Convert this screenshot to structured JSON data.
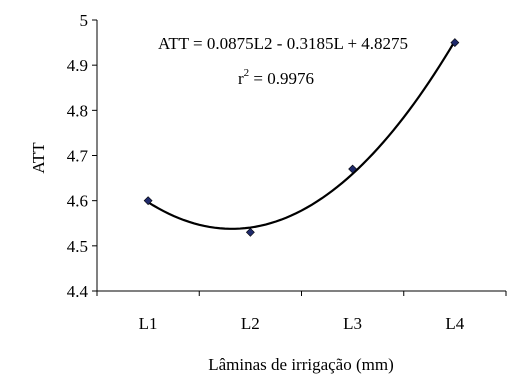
{
  "chart_data": {
    "type": "scatter",
    "categories": [
      "L1",
      "L2",
      "L3",
      "L4"
    ],
    "x": [
      1,
      2,
      3,
      4
    ],
    "series": [
      {
        "values": [
          4.6,
          4.53,
          4.67,
          4.95
        ],
        "marker": "diamond",
        "color": "#1f2a6b"
      }
    ],
    "trendline": {
      "type": "polynomial",
      "order": 2,
      "coefficients": {
        "a": 0.0875,
        "b": -0.3185,
        "c": 4.8275
      },
      "color": "#000000"
    },
    "title": "",
    "xlabel": "Lâminas de irrigação (mm)",
    "ylabel": "ATT",
    "ylim": [
      4.4,
      5.0
    ],
    "yticks": [
      4.4,
      4.5,
      4.6,
      4.7,
      4.8,
      4.9,
      5.0
    ],
    "ytick_labels": [
      "4.4",
      "4.5",
      "4.6",
      "4.7",
      "4.8",
      "4.9",
      "5"
    ],
    "annotations": {
      "equation": "ATT = 0.0875L2 - 0.3185L + 4.8275",
      "r2_prefix": "r",
      "r2_exp": "2",
      "r2_value": " = 0.9976"
    },
    "grid": false,
    "legend": "none"
  }
}
